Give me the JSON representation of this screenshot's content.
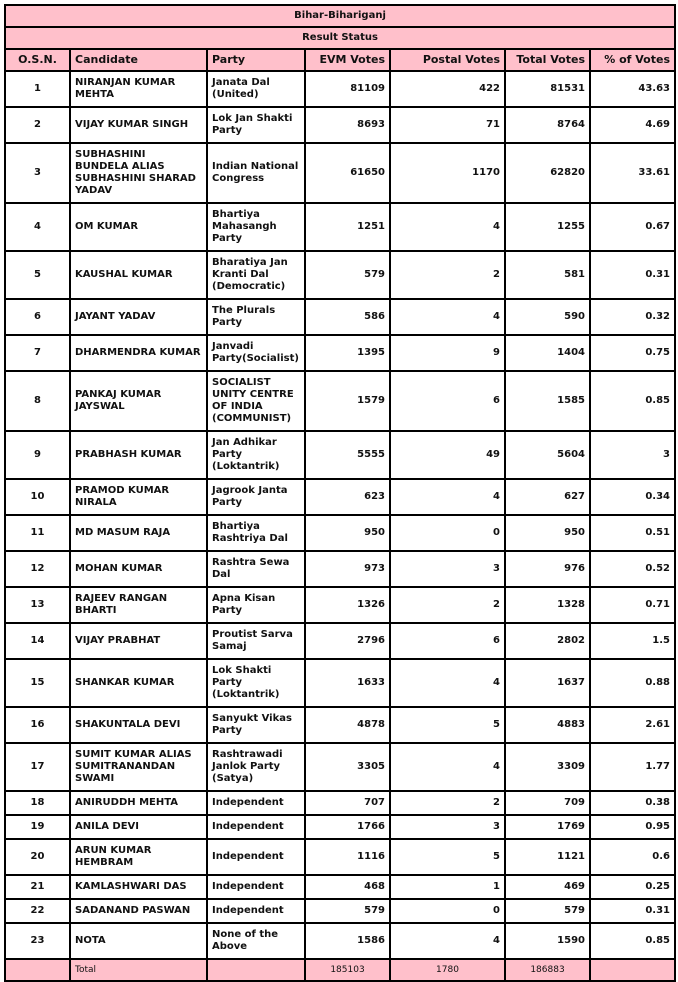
{
  "title": "Bihar-Bihariganj",
  "subtitle": "Result Status",
  "colors": {
    "header_bg": "#ffc0cb",
    "border": "#000000"
  },
  "columns": [
    "O.S.N.",
    "Candidate",
    "Party",
    "EVM Votes",
    "Postal Votes",
    "Total Votes",
    "% of Votes"
  ],
  "rows": [
    {
      "osn": "1",
      "candidate": "NIRANJAN KUMAR\nMEHTA",
      "party": "Janata Dal\n(United)",
      "evm": "81109",
      "postal": "422",
      "total": "81531",
      "pct": "43.63"
    },
    {
      "osn": "2",
      "candidate": "VIJAY KUMAR SINGH",
      "party": "Lok Jan Shakti\nParty",
      "evm": "8693",
      "postal": "71",
      "total": "8764",
      "pct": "4.69"
    },
    {
      "osn": "3",
      "candidate": "SUBHASHINI\nBUNDELA ALIAS\nSUBHASHINI SHARAD\nYADAV",
      "party": "Indian National\nCongress",
      "evm": "61650",
      "postal": "1170",
      "total": "62820",
      "pct": "33.61"
    },
    {
      "osn": "4",
      "candidate": "OM KUMAR",
      "party": "Bhartiya\nMahasangh\nParty",
      "evm": "1251",
      "postal": "4",
      "total": "1255",
      "pct": "0.67"
    },
    {
      "osn": "5",
      "candidate": "KAUSHAL KUMAR",
      "party": "Bharatiya Jan\nKranti Dal\n(Democratic)",
      "evm": "579",
      "postal": "2",
      "total": "581",
      "pct": "0.31"
    },
    {
      "osn": "6",
      "candidate": "JAYANT YADAV",
      "party": "The Plurals\nParty",
      "evm": "586",
      "postal": "4",
      "total": "590",
      "pct": "0.32"
    },
    {
      "osn": "7",
      "candidate": "DHARMENDRA KUMAR",
      "party": "Janvadi\nParty(Socialist)",
      "evm": "1395",
      "postal": "9",
      "total": "1404",
      "pct": "0.75"
    },
    {
      "osn": "8",
      "candidate": "PANKAJ KUMAR\nJAYSWAL",
      "party": "SOCIALIST\nUNITY CENTRE\nOF INDIA\n(COMMUNIST)",
      "evm": "1579",
      "postal": "6",
      "total": "1585",
      "pct": "0.85"
    },
    {
      "osn": "9",
      "candidate": "PRABHASH KUMAR",
      "party": "Jan Adhikar\nParty\n(Loktantrik)",
      "evm": "5555",
      "postal": "49",
      "total": "5604",
      "pct": "3"
    },
    {
      "osn": "10",
      "candidate": "PRAMOD KUMAR\nNIRALA",
      "party": "Jagrook Janta\nParty",
      "evm": "623",
      "postal": "4",
      "total": "627",
      "pct": "0.34"
    },
    {
      "osn": "11",
      "candidate": "MD MASUM RAJA",
      "party": "Bhartiya\nRashtriya Dal",
      "evm": "950",
      "postal": "0",
      "total": "950",
      "pct": "0.51"
    },
    {
      "osn": "12",
      "candidate": "MOHAN KUMAR",
      "party": "Rashtra Sewa\nDal",
      "evm": "973",
      "postal": "3",
      "total": "976",
      "pct": "0.52"
    },
    {
      "osn": "13",
      "candidate": "RAJEEV RANGAN\nBHARTI",
      "party": "Apna Kisan\nParty",
      "evm": "1326",
      "postal": "2",
      "total": "1328",
      "pct": "0.71"
    },
    {
      "osn": "14",
      "candidate": "VIJAY PRABHAT",
      "party": "Proutist Sarva\nSamaj",
      "evm": "2796",
      "postal": "6",
      "total": "2802",
      "pct": "1.5"
    },
    {
      "osn": "15",
      "candidate": "SHANKAR KUMAR",
      "party": "Lok Shakti\nParty\n(Loktantrik)",
      "evm": "1633",
      "postal": "4",
      "total": "1637",
      "pct": "0.88"
    },
    {
      "osn": "16",
      "candidate": "SHAKUNTALA DEVI",
      "party": "Sanyukt Vikas\nParty",
      "evm": "4878",
      "postal": "5",
      "total": "4883",
      "pct": "2.61"
    },
    {
      "osn": "17",
      "candidate": "SUMIT KUMAR ALIAS\nSUMITRANANDAN\nSWAMI",
      "party": "Rashtrawadi\nJanlok Party\n(Satya)",
      "evm": "3305",
      "postal": "4",
      "total": "3309",
      "pct": "1.77"
    },
    {
      "osn": "18",
      "candidate": "ANIRUDDH MEHTA",
      "party": "Independent",
      "evm": "707",
      "postal": "2",
      "total": "709",
      "pct": "0.38"
    },
    {
      "osn": "19",
      "candidate": "ANILA DEVI",
      "party": "Independent",
      "evm": "1766",
      "postal": "3",
      "total": "1769",
      "pct": "0.95"
    },
    {
      "osn": "20",
      "candidate": "ARUN KUMAR\nHEMBRAM",
      "party": "Independent",
      "evm": "1116",
      "postal": "5",
      "total": "1121",
      "pct": "0.6"
    },
    {
      "osn": "21",
      "candidate": "KAMLASHWARI DAS",
      "party": "Independent",
      "evm": "468",
      "postal": "1",
      "total": "469",
      "pct": "0.25"
    },
    {
      "osn": "22",
      "candidate": "SADANAND PASWAN",
      "party": "Independent",
      "evm": "579",
      "postal": "0",
      "total": "579",
      "pct": "0.31"
    },
    {
      "osn": "23",
      "candidate": "NOTA",
      "party": "None of the\nAbove",
      "evm": "1586",
      "postal": "4",
      "total": "1590",
      "pct": "0.85"
    }
  ],
  "totals": {
    "label": "Total",
    "evm": "185103",
    "postal": "1780",
    "total": "186883"
  }
}
